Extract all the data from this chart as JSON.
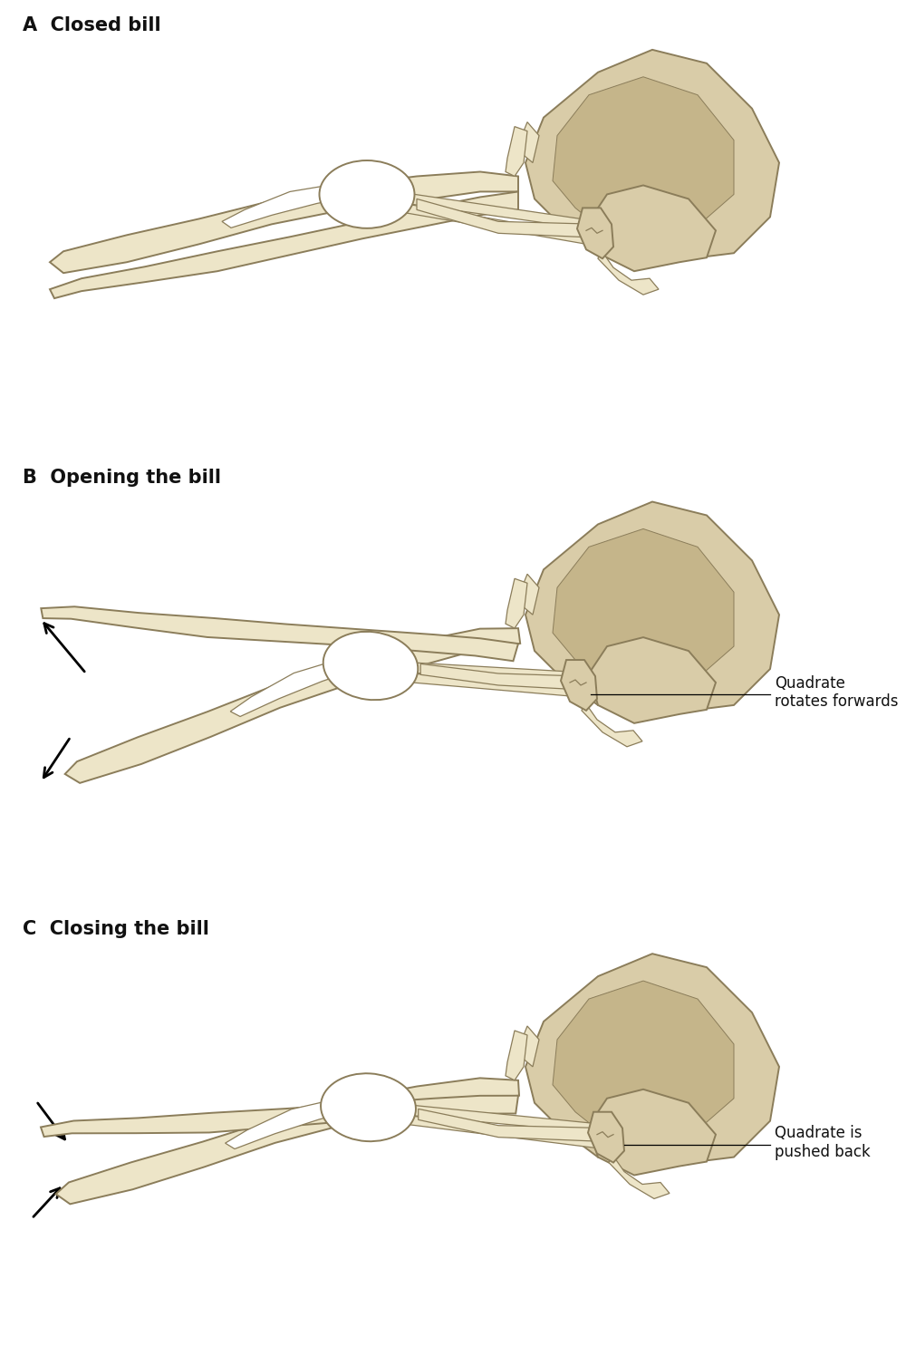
{
  "background_color": "#ffffff",
  "bone_light": "#ede5c8",
  "bone_mid": "#d9cca8",
  "bone_dark": "#c5b58a",
  "bone_stroke": "#8b7d5a",
  "text_color": "#111111",
  "label_A": "A  Closed bill",
  "label_B": "B  Opening the bill",
  "label_C": "C  Closing the bill",
  "annotation_B_1": "Quadrate",
  "annotation_B_2": "rotates forwards",
  "annotation_C_1": "Quadrate is",
  "annotation_C_2": "pushed back",
  "label_fontsize": 15,
  "annot_fontsize": 12,
  "fig_width": 10.0,
  "fig_height": 14.96
}
